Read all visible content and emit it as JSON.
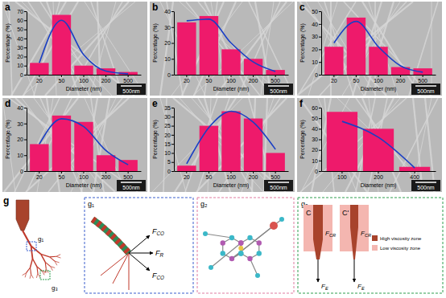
{
  "chart_data": [
    {
      "type": "bar",
      "title": "a",
      "xlabel": "Diameter (nm)",
      "ylabel": "Percentage (%)",
      "annotations": [
        "500nm"
      ],
      "categories": [
        20,
        50,
        100,
        200,
        500
      ],
      "series": [
        {
          "color": "#ee1a6b",
          "values": [
            13,
            66,
            10,
            7,
            3
          ]
        },
        {
          "type": "line",
          "color": "#1a3fc4",
          "values": [
            13,
            60,
            22,
            4,
            1
          ]
        }
      ],
      "ylim": [
        0,
        70
      ],
      "yticks": [
        0,
        10,
        20,
        30,
        40,
        50,
        60,
        70
      ]
    },
    {
      "type": "bar",
      "title": "b",
      "xlabel": "Diameter (nm)",
      "ylabel": "Percentage (%)",
      "annotations": [
        "500nm"
      ],
      "categories": [
        20,
        50,
        100,
        200,
        500
      ],
      "series": [
        {
          "color": "#ee1a6b",
          "values": [
            33,
            37,
            16,
            10,
            3
          ]
        },
        {
          "type": "line",
          "color": "#1a3fc4",
          "values": [
            34,
            35,
            20,
            8,
            2
          ]
        }
      ],
      "ylim": [
        0,
        40
      ],
      "yticks": [
        0,
        10,
        20,
        30,
        40
      ]
    },
    {
      "type": "bar",
      "title": "c",
      "xlabel": "Diameter (nm)",
      "ylabel": "Percentage (%)",
      "annotations": [
        "500nm"
      ],
      "categories": [
        20,
        50,
        100,
        200,
        500
      ],
      "series": [
        {
          "color": "#ee1a6b",
          "values": [
            22,
            45,
            22,
            6,
            5
          ]
        },
        {
          "type": "line",
          "color": "#1a3fc4",
          "values": [
            25,
            42,
            22,
            7,
            2
          ]
        }
      ],
      "ylim": [
        0,
        50
      ],
      "yticks": [
        0,
        10,
        20,
        30,
        40,
        50
      ]
    },
    {
      "type": "bar",
      "title": "d",
      "xlabel": "Diameter (nm)",
      "ylabel": "Percentage (%)",
      "annotations": [
        "500nm"
      ],
      "categories": [
        20,
        50,
        100,
        200,
        500
      ],
      "series": [
        {
          "color": "#ee1a6b",
          "values": [
            17,
            35,
            31,
            10,
            7
          ]
        },
        {
          "type": "line",
          "color": "#1a3fc4",
          "values": [
            17,
            33,
            28,
            13,
            4
          ]
        }
      ],
      "ylim": [
        0,
        40
      ],
      "yticks": [
        0,
        10,
        20,
        30,
        40
      ]
    },
    {
      "type": "bar",
      "title": "e",
      "xlabel": "Diameter (nm)",
      "ylabel": "Percentage (%)",
      "annotations": [
        "500nm"
      ],
      "categories": [
        20,
        50,
        100,
        200,
        500
      ],
      "series": [
        {
          "color": "#ee1a6b",
          "values": [
            3,
            25,
            33,
            29,
            10
          ]
        },
        {
          "type": "line",
          "color": "#1a3fc4",
          "values": [
            4,
            24,
            33,
            27,
            12
          ]
        }
      ],
      "ylim": [
        0,
        35
      ],
      "yticks": [
        0,
        5,
        10,
        15,
        20,
        25,
        30,
        35
      ]
    },
    {
      "type": "bar",
      "title": "f",
      "xlabel": "Diameter (nm)",
      "ylabel": "Percentage (%)",
      "annotations": [
        "500nm"
      ],
      "categories": [
        100,
        200,
        400
      ],
      "series": [
        {
          "color": "#ee1a6b",
          "values": [
            56,
            40,
            4
          ]
        },
        {
          "type": "line",
          "color": "#1a3fc4",
          "values": [
            47,
            32,
            3
          ]
        }
      ],
      "ylim": [
        0,
        60
      ],
      "yticks": [
        0,
        10,
        20,
        30,
        40,
        50,
        60
      ]
    }
  ],
  "diagram": {
    "label": "g",
    "tree_labels": [
      "g₁",
      "g₃"
    ],
    "insets": [
      {
        "label": "g₁",
        "forces": [
          {
            "text": "F",
            "sub": "CO"
          },
          {
            "text": "F",
            "sub": "R"
          },
          {
            "text": "F",
            "sub": "CO"
          }
        ]
      },
      {
        "label": "g₂"
      },
      {
        "label": "g₃",
        "cones": [
          {
            "top": "C",
            "force": {
              "text": "F",
              "sub": "CR"
            },
            "jet": {
              "text": "F",
              "sub": "E"
            }
          },
          {
            "top": "C'",
            "force": {
              "text": "F",
              "sub": "CR"
            },
            "jet": {
              "text": "F",
              "sub": "E"
            }
          }
        ],
        "legend": [
          {
            "text": "High viscosity zone",
            "color": "#a8432c"
          },
          {
            "text": "Low viscosity zone",
            "color": "#f4b6b0"
          }
        ]
      }
    ]
  }
}
